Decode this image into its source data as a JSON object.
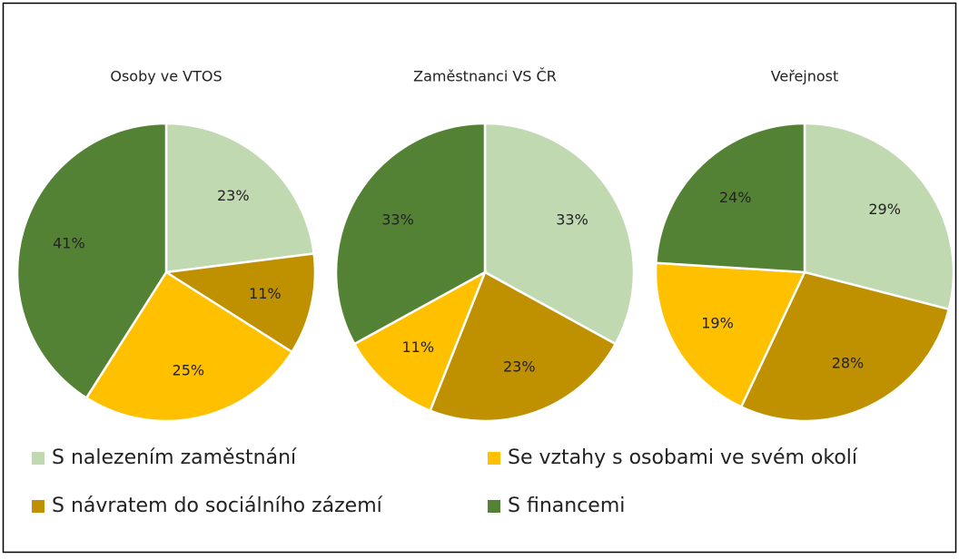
{
  "legend": {
    "items": [
      "S nalezením zaměstnání",
      "S návratem do sociálního zázemí",
      "Se vztahy s osobami ve svém okolí",
      "S financemi"
    ],
    "colors": [
      "#c0d9b1",
      "#bf9000",
      "#ffc000",
      "#548235"
    ]
  },
  "chart_data": [
    {
      "type": "pie",
      "title": "Osoby  ve VTOS",
      "values": [
        23,
        11,
        25,
        41
      ],
      "value_labels": [
        "23%",
        "11%",
        "25%",
        "41%"
      ]
    },
    {
      "type": "pie",
      "title": "Zaměstnanci VS ČR",
      "values": [
        33,
        23,
        11,
        33
      ],
      "value_labels": [
        "33%",
        "23%",
        "11%",
        "33%"
      ]
    },
    {
      "type": "pie",
      "title": "Veřejnost",
      "values": [
        29,
        28,
        19,
        24
      ],
      "value_labels": [
        "29%",
        "28%",
        "19%",
        "24%"
      ]
    }
  ]
}
